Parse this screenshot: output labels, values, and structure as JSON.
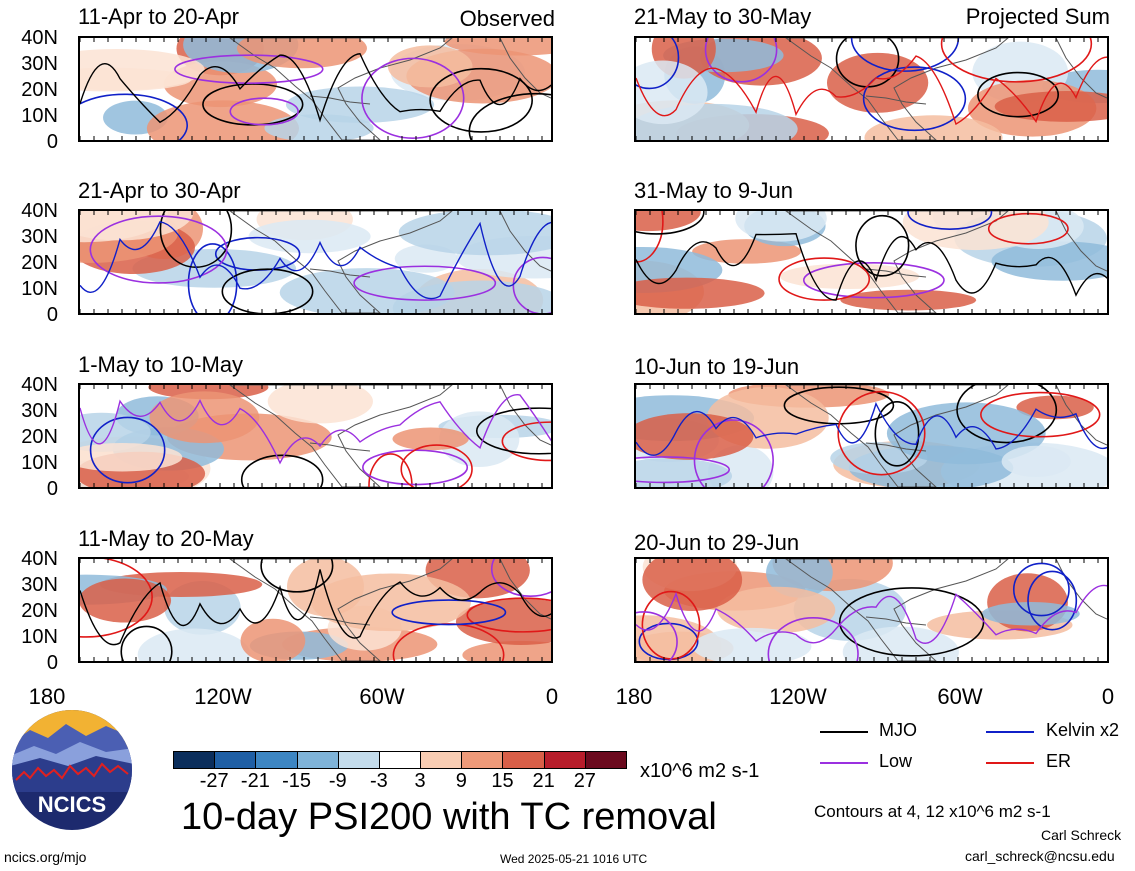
{
  "header": {
    "left_corner": "Observed",
    "right_corner": "Projected Sum"
  },
  "panels_left": [
    {
      "title": "11-Apr to 20-Apr"
    },
    {
      "title": "21-Apr to 30-Apr"
    },
    {
      "title": "1-May to 10-May"
    },
    {
      "title": "11-May to 20-May"
    }
  ],
  "panels_right": [
    {
      "title": "21-May to 30-May"
    },
    {
      "title": "31-May to 9-Jun"
    },
    {
      "title": "10-Jun to 19-Jun"
    },
    {
      "title": "20-Jun to 29-Jun"
    }
  ],
  "y_ticks": [
    "40N",
    "30N",
    "20N",
    "10N",
    "0"
  ],
  "x_ticks": [
    "180",
    "120W",
    "60W",
    "0"
  ],
  "colorbar": {
    "colors": [
      "#0b2e5c",
      "#1f5fa5",
      "#3d86c3",
      "#7fb3d8",
      "#c4dcec",
      "#ffffff",
      "#f9cdb3",
      "#ef9a79",
      "#d95f48",
      "#b71d2b",
      "#6b0a1e"
    ],
    "labels": [
      "-27",
      "-21",
      "-15",
      "-9",
      "-3",
      "3",
      "9",
      "15",
      "21",
      "27"
    ],
    "units": "x10^6 m2 s-1"
  },
  "main_title": "10-day PSI200 with TC removal",
  "legend": [
    {
      "name": "MJO",
      "color": "#000000"
    },
    {
      "name": "Kelvin x2",
      "color": "#1020c8"
    },
    {
      "name": "Low",
      "color": "#9b30e0"
    },
    {
      "name": "ER",
      "color": "#e01818"
    }
  ],
  "contours_note": "Contours at 4, 12 x10^6 m2 s-1",
  "author": "Carl Schreck",
  "email": "carl_schreck@ncsu.edu",
  "logo_text": "NCICS",
  "site": "ncics.org/mjo",
  "timestamp": "Wed 2025-05-21 1016 UTC"
}
